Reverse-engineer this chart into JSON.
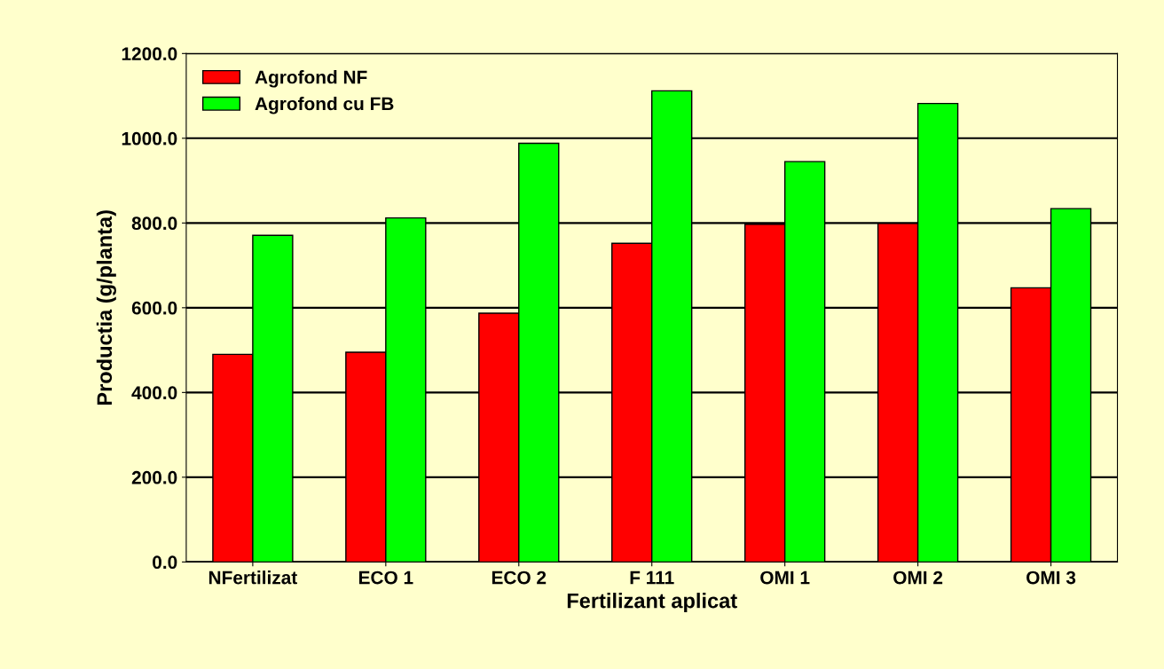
{
  "chart_data": {
    "type": "bar",
    "xlabel": "Fertilizant aplicat",
    "ylabel": "Productia (g/planta)",
    "categories": [
      "NFertilizat",
      "ECO 1",
      "ECO 2",
      "F 111",
      "OMI 1",
      "OMI 2",
      "OMI 3"
    ],
    "series": [
      {
        "name": "Agrofond NF",
        "color": "#ff0000",
        "values": [
          490,
          495,
          587,
          752,
          797,
          799,
          647
        ]
      },
      {
        "name": "Agrofond cu FB",
        "color": "#00ff00",
        "values": [
          771,
          812,
          988,
          1112,
          945,
          1082,
          834
        ]
      }
    ],
    "ylim": [
      0,
      1200
    ],
    "yticks": [
      {
        "value": 0,
        "label": "0.0"
      },
      {
        "value": 200,
        "label": "200.0"
      },
      {
        "value": 400,
        "label": "400.0"
      },
      {
        "value": 600,
        "label": "600.0"
      },
      {
        "value": 800,
        "label": "800.0"
      },
      {
        "value": 1000,
        "label": "1000.0"
      },
      {
        "value": 1200,
        "label": "1200.0"
      }
    ],
    "grid": "y",
    "legend": "top left"
  }
}
